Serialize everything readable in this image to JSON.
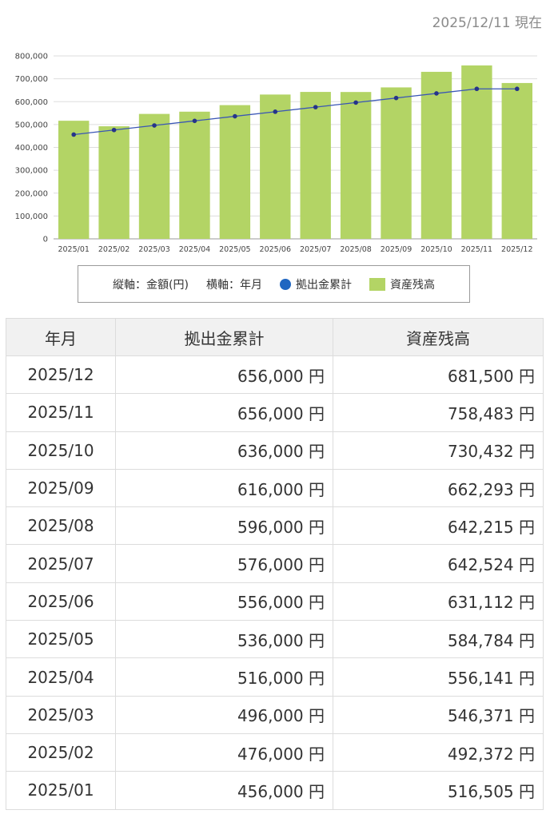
{
  "as_of": "2025/12/11 現在",
  "legend": {
    "vertical": "縦軸：金額(円)",
    "horizontal": "横軸：年月",
    "contrib_label": "拠出金累計",
    "balance_label": "資産残高"
  },
  "colors": {
    "bar": "#b3d465",
    "line": "#3a56b5",
    "point": "#26348a",
    "legend_dot": "#1f66c1"
  },
  "chart_data": {
    "type": "bar",
    "categories": [
      "2025/01",
      "2025/02",
      "2025/03",
      "2025/04",
      "2025/05",
      "2025/06",
      "2025/07",
      "2025/08",
      "2025/09",
      "2025/10",
      "2025/11",
      "2025/12"
    ],
    "series": [
      {
        "name": "資産残高",
        "type": "bar",
        "values": [
          516505,
          492372,
          546371,
          556141,
          584784,
          631112,
          642524,
          642215,
          662293,
          730432,
          758483,
          681500
        ]
      },
      {
        "name": "拠出金累計",
        "type": "line",
        "values": [
          456000,
          476000,
          496000,
          516000,
          536000,
          556000,
          576000,
          596000,
          616000,
          636000,
          656000,
          656000
        ]
      }
    ],
    "ylim": [
      0,
      800000
    ],
    "yticks": [
      "0",
      "100,000",
      "200,000",
      "300,000",
      "400,000",
      "500,000",
      "600,000",
      "700,000",
      "800,000"
    ],
    "grid": true
  },
  "table": {
    "headers": [
      "年月",
      "拠出金累計",
      "資産残高"
    ],
    "rows": [
      [
        "2025/12",
        "656,000 円",
        "681,500 円"
      ],
      [
        "2025/11",
        "656,000 円",
        "758,483 円"
      ],
      [
        "2025/10",
        "636,000 円",
        "730,432 円"
      ],
      [
        "2025/09",
        "616,000 円",
        "662,293 円"
      ],
      [
        "2025/08",
        "596,000 円",
        "642,215 円"
      ],
      [
        "2025/07",
        "576,000 円",
        "642,524 円"
      ],
      [
        "2025/06",
        "556,000 円",
        "631,112 円"
      ],
      [
        "2025/05",
        "536,000 円",
        "584,784 円"
      ],
      [
        "2025/04",
        "516,000 円",
        "556,141 円"
      ],
      [
        "2025/03",
        "496,000 円",
        "546,371 円"
      ],
      [
        "2025/02",
        "476,000 円",
        "492,372 円"
      ],
      [
        "2025/01",
        "456,000 円",
        "516,505 円"
      ]
    ]
  }
}
